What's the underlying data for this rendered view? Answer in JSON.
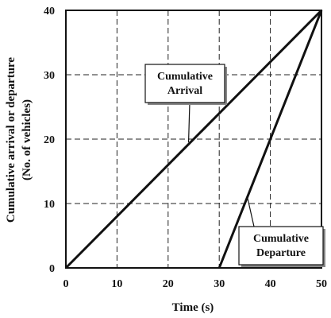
{
  "chart_data": {
    "type": "line",
    "title": "",
    "xlabel": "Time (s)",
    "ylabel_line1": "Cumulative arrival or departure",
    "ylabel_line2": "(No. of vehicles)",
    "xlim": [
      0,
      50
    ],
    "ylim": [
      0,
      40
    ],
    "x_ticks": [
      0,
      10,
      20,
      30,
      40,
      50
    ],
    "y_ticks": [
      0,
      10,
      20,
      30,
      40
    ],
    "grid": true,
    "grid_style": "dashed",
    "series": [
      {
        "name": "Cumulative Arrival",
        "x": [
          0,
          50
        ],
        "y": [
          0,
          40
        ]
      },
      {
        "name": "Cumulative Departure",
        "x": [
          30,
          50
        ],
        "y": [
          0,
          40
        ]
      }
    ],
    "annotations": [
      {
        "series": "Cumulative Arrival",
        "lines": [
          "Cumulative",
          "Arrival"
        ],
        "points_to": [
          24,
          19.5
        ]
      },
      {
        "series": "Cumulative Departure",
        "lines": [
          "Cumulative",
          "Departure"
        ],
        "points_to": [
          35.5,
          11
        ]
      }
    ]
  }
}
